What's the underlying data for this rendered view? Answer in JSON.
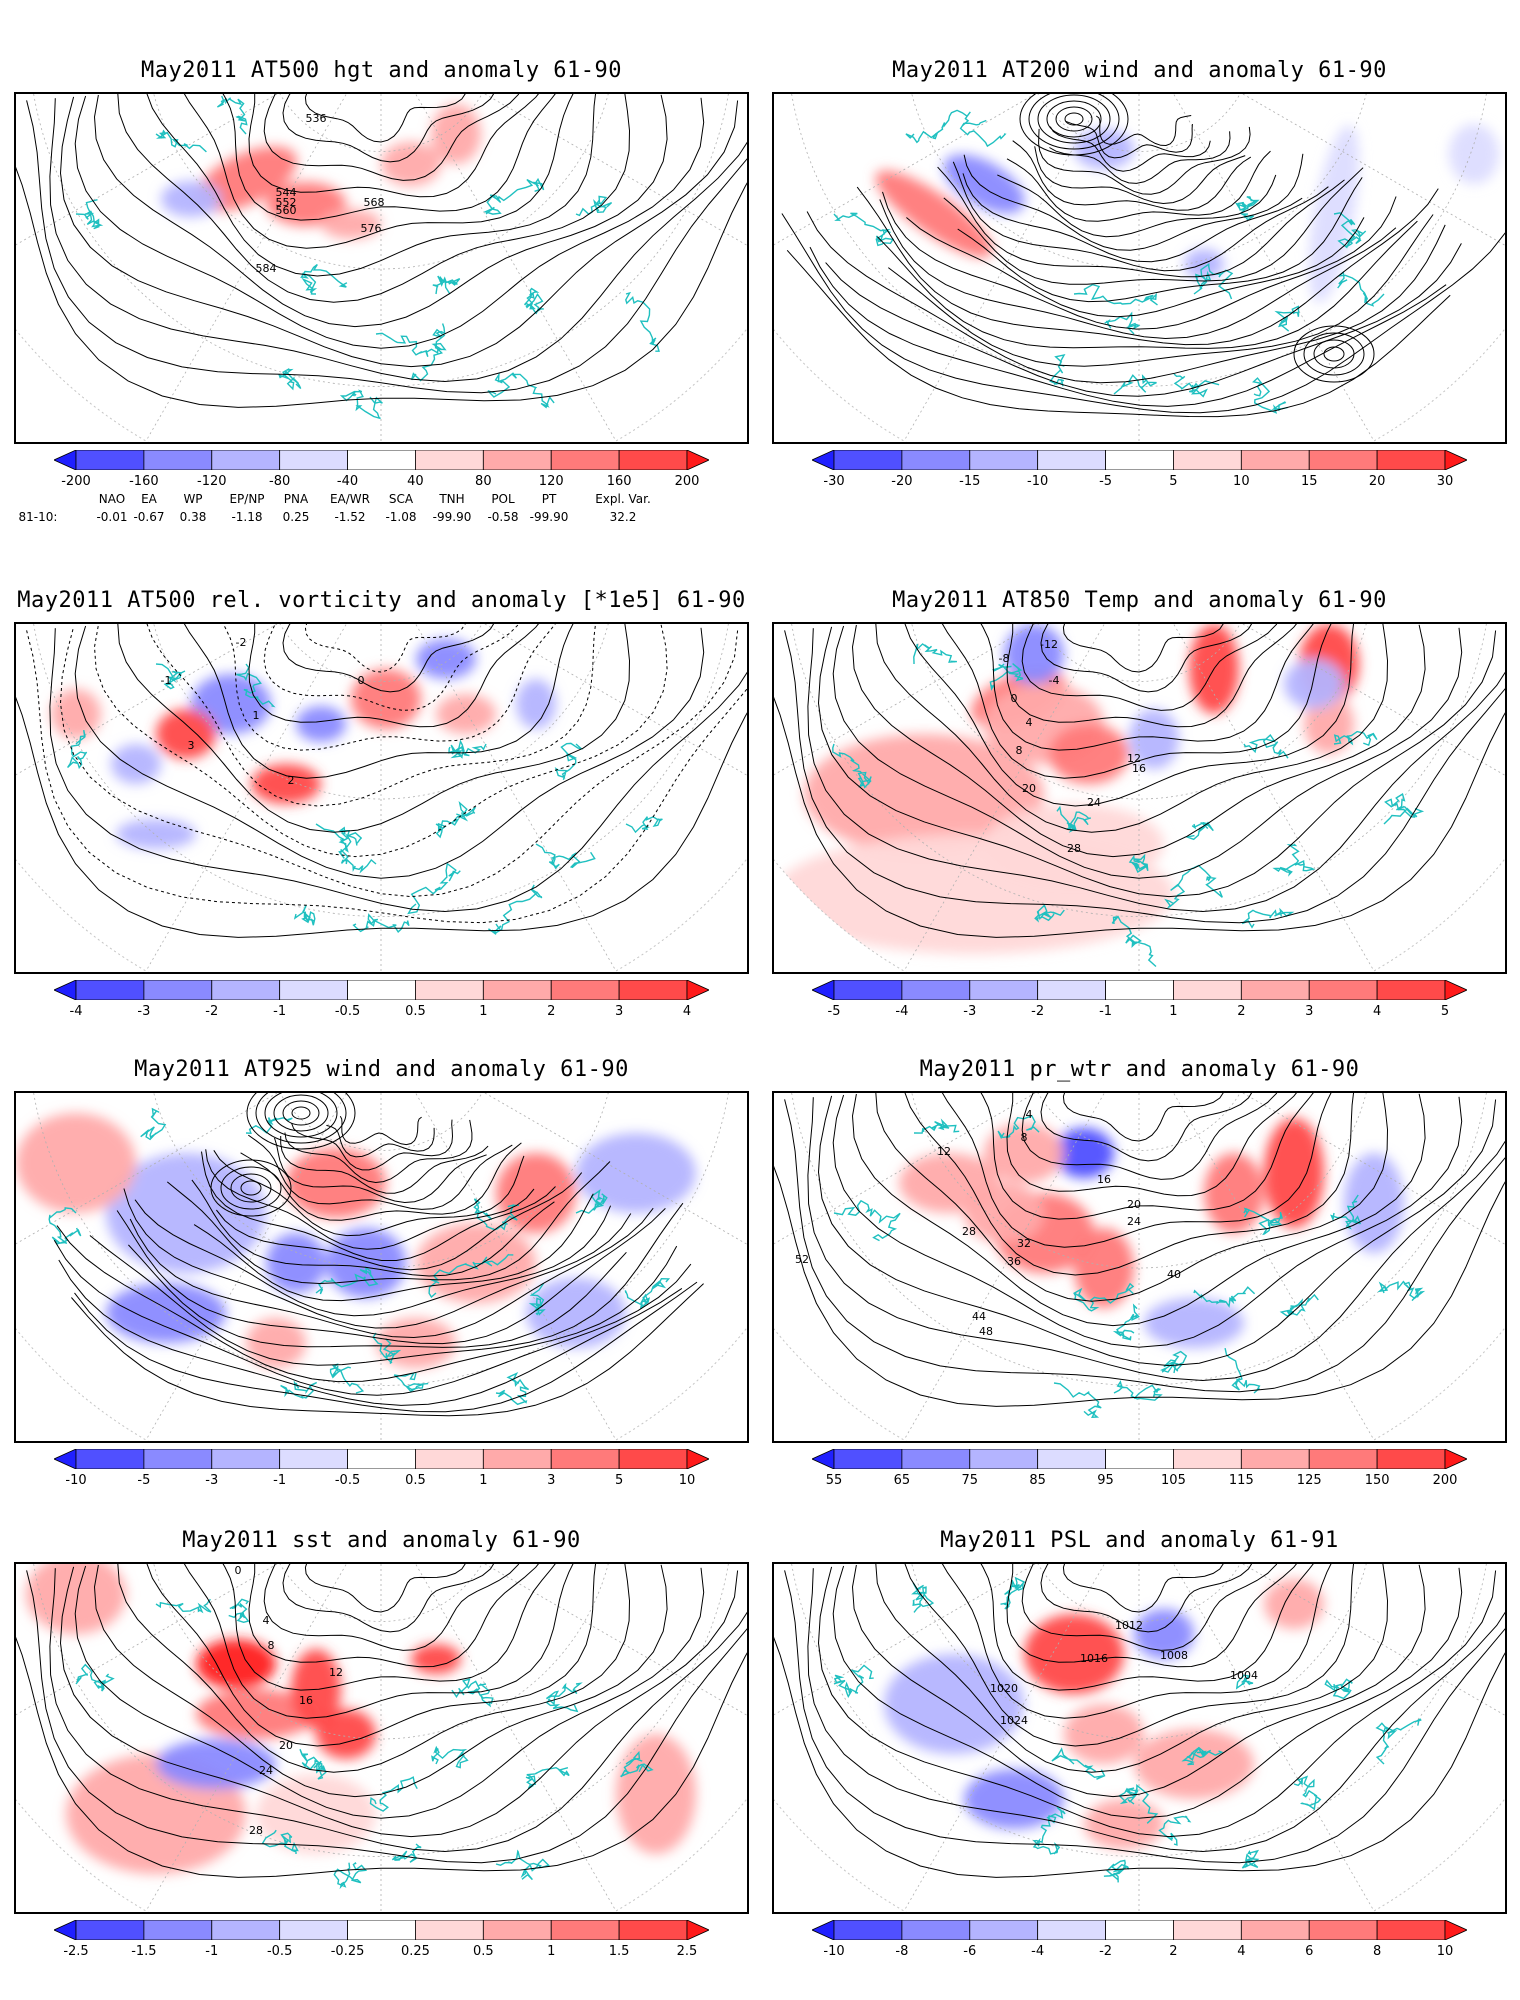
{
  "panels": [
    {
      "id": "hgt500",
      "title": "May2011 AT500 hgt and anomaly 61-90",
      "field_type": "hgt",
      "contour_labels": [
        "536",
        "544",
        "552",
        "560",
        "568",
        "576",
        "584"
      ],
      "colorbar": {
        "ticks": [
          "-200",
          "-160",
          "-120",
          "-80",
          "-40",
          "40",
          "80",
          "120",
          "160",
          "200"
        ],
        "colors": [
          "#2020ff",
          "#5050ff",
          "#8a8aff",
          "#b4b4ff",
          "#dcdcff",
          "#ffffff",
          "#ffd8d8",
          "#ffaaaa",
          "#ff7a7a",
          "#ff4a4a",
          "#ff1a1a"
        ]
      }
    },
    {
      "id": "wind200",
      "title": "May2011 AT200 wind and anomaly 61-90",
      "field_type": "wind",
      "contour_labels": [],
      "colorbar": {
        "ticks": [
          "-30",
          "-20",
          "-15",
          "-10",
          "-5",
          "5",
          "10",
          "15",
          "20",
          "30"
        ],
        "colors": [
          "#2020ff",
          "#5050ff",
          "#8a8aff",
          "#b4b4ff",
          "#dcdcff",
          "#ffffff",
          "#ffd8d8",
          "#ffaaaa",
          "#ff7a7a",
          "#ff4a4a",
          "#ff1a1a"
        ]
      }
    },
    {
      "id": "vort500",
      "title": "May2011 AT500 rel. vorticity and anomaly [*1e5] 61-90",
      "field_type": "vort",
      "contour_labels": [
        "-2",
        "-1",
        "0",
        "1",
        "2",
        "3"
      ],
      "colorbar": {
        "ticks": [
          "-4",
          "-3",
          "-2",
          "-1",
          "-0.5",
          "0.5",
          "1",
          "2",
          "3",
          "4"
        ],
        "colors": [
          "#2020ff",
          "#5050ff",
          "#8a8aff",
          "#b4b4ff",
          "#dcdcff",
          "#ffffff",
          "#ffd8d8",
          "#ffaaaa",
          "#ff7a7a",
          "#ff4a4a",
          "#ff1a1a"
        ]
      }
    },
    {
      "id": "temp850",
      "title": "May2011 AT850 Temp and anomaly 61-90",
      "field_type": "temp",
      "contour_labels": [
        "-12",
        "-8",
        "-4",
        "0",
        "4",
        "8",
        "12",
        "16",
        "20",
        "24",
        "28"
      ],
      "colorbar": {
        "ticks": [
          "-5",
          "-4",
          "-3",
          "-2",
          "-1",
          "1",
          "2",
          "3",
          "4",
          "5"
        ],
        "colors": [
          "#2020ff",
          "#5050ff",
          "#8a8aff",
          "#b4b4ff",
          "#dcdcff",
          "#ffffff",
          "#ffd8d8",
          "#ffaaaa",
          "#ff7a7a",
          "#ff4a4a",
          "#ff1a1a"
        ]
      }
    },
    {
      "id": "wind925",
      "title": "May2011 AT925 wind and anomaly 61-90",
      "field_type": "wind",
      "contour_labels": [],
      "colorbar": {
        "ticks": [
          "-10",
          "-5",
          "-3",
          "-1",
          "-0.5",
          "0.5",
          "1",
          "3",
          "5",
          "10"
        ],
        "colors": [
          "#2020ff",
          "#5050ff",
          "#8a8aff",
          "#b4b4ff",
          "#dcdcff",
          "#ffffff",
          "#ffd8d8",
          "#ffaaaa",
          "#ff7a7a",
          "#ff4a4a",
          "#ff1a1a"
        ]
      }
    },
    {
      "id": "prwtr",
      "title": "May2011 pr_wtr and anomaly 61-90",
      "field_type": "prwtr",
      "contour_labels": [
        "4",
        "8",
        "12",
        "16",
        "20",
        "24",
        "28",
        "32",
        "36",
        "40",
        "44",
        "48",
        "52"
      ],
      "colorbar": {
        "ticks": [
          "55",
          "65",
          "75",
          "85",
          "95",
          "105",
          "115",
          "125",
          "150",
          "200"
        ],
        "colors": [
          "#2020ff",
          "#5050ff",
          "#8a8aff",
          "#b4b4ff",
          "#dcdcff",
          "#ffffff",
          "#ffd8d8",
          "#ffaaaa",
          "#ff7a7a",
          "#ff4a4a",
          "#ff1a1a"
        ]
      }
    },
    {
      "id": "sst",
      "title": "May2011 sst and anomaly 61-90",
      "field_type": "sst",
      "contour_labels": [
        "0",
        "4",
        "8",
        "12",
        "16",
        "20",
        "24",
        "28"
      ],
      "colorbar": {
        "ticks": [
          "-2.5",
          "-1.5",
          "-1",
          "-0.5",
          "-0.25",
          "0.25",
          "0.5",
          "1",
          "1.5",
          "2.5"
        ],
        "colors": [
          "#2020ff",
          "#5050ff",
          "#8a8aff",
          "#b4b4ff",
          "#dcdcff",
          "#ffffff",
          "#ffd8d8",
          "#ffaaaa",
          "#ff7a7a",
          "#ff4a4a",
          "#ff1a1a"
        ]
      }
    },
    {
      "id": "psl",
      "title": "May2011 PSL and anomaly 61-91",
      "field_type": "psl",
      "contour_labels": [
        "1004",
        "1008",
        "1012",
        "1016",
        "1020",
        "1024"
      ],
      "colorbar": {
        "ticks": [
          "-10",
          "-8",
          "-6",
          "-4",
          "-2",
          "2",
          "4",
          "6",
          "8",
          "10"
        ],
        "colors": [
          "#2020ff",
          "#5050ff",
          "#8a8aff",
          "#b4b4ff",
          "#dcdcff",
          "#ffffff",
          "#ffd8d8",
          "#ffaaaa",
          "#ff7a7a",
          "#ff4a4a",
          "#ff1a1a"
        ]
      }
    }
  ],
  "teleconnection_indices": {
    "headers": [
      "NAO",
      "EA",
      "WP",
      "EP/NP",
      "PNA",
      "EA/WR",
      "SCA",
      "TNH",
      "POL",
      "PT",
      "Expl. Var."
    ],
    "row_label": "81-10:",
    "values": [
      "-0.01",
      "-0.67",
      "0.38",
      "-1.18",
      "0.25",
      "-1.52",
      "-1.08",
      "-99.90",
      "-0.58",
      "-99.90",
      "32.2"
    ]
  },
  "colors": {
    "coastline": "#20c0c0",
    "contour": "#000000",
    "graticule": "#b0b0b0"
  }
}
